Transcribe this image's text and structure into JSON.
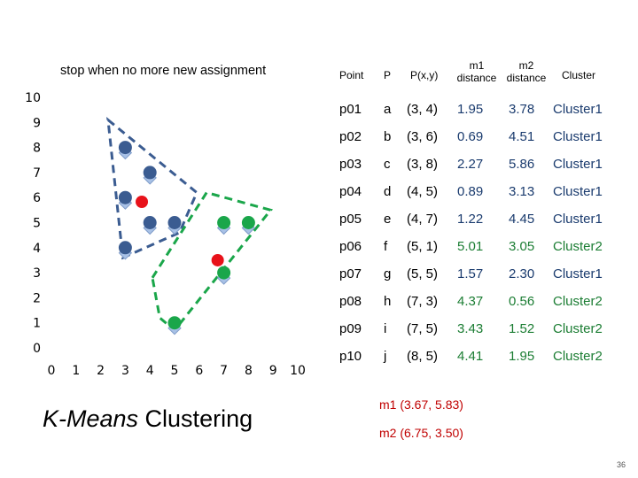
{
  "slide": {
    "headline": "stop when no more new assignment",
    "title_italic": "K-Means",
    "title_rest": " Clustering",
    "page_number": "36"
  },
  "table": {
    "headers": {
      "point": "Point",
      "p": "P",
      "xy": "P(x,y)",
      "m1": "m1\ndistance",
      "m2": "m2\ndistance",
      "cluster": "Cluster"
    },
    "rows": [
      {
        "point": "p01",
        "p": "a",
        "xy": "(3, 4)",
        "d1": "1.95",
        "d2": "3.78",
        "cluster": "Cluster1"
      },
      {
        "point": "p02",
        "p": "b",
        "xy": "(3, 6)",
        "d1": "0.69",
        "d2": "4.51",
        "cluster": "Cluster1"
      },
      {
        "point": "p03",
        "p": "c",
        "xy": "(3, 8)",
        "d1": "2.27",
        "d2": "5.86",
        "cluster": "Cluster1"
      },
      {
        "point": "p04",
        "p": "d",
        "xy": "(4, 5)",
        "d1": "0.89",
        "d2": "3.13",
        "cluster": "Cluster1"
      },
      {
        "point": "p05",
        "p": "e",
        "xy": "(4, 7)",
        "d1": "1.22",
        "d2": "4.45",
        "cluster": "Cluster1"
      },
      {
        "point": "p06",
        "p": "f",
        "xy": "(5, 1)",
        "d1": "5.01",
        "d2": "3.05",
        "cluster": "Cluster2"
      },
      {
        "point": "p07",
        "p": "g",
        "xy": "(5, 5)",
        "d1": "1.57",
        "d2": "2.30",
        "cluster": "Cluster1"
      },
      {
        "point": "p08",
        "p": "h",
        "xy": "(7, 3)",
        "d1": "4.37",
        "d2": "0.56",
        "cluster": "Cluster2"
      },
      {
        "point": "p09",
        "p": "i",
        "xy": "(7, 5)",
        "d1": "3.43",
        "d2": "1.52",
        "cluster": "Cluster2"
      },
      {
        "point": "p10",
        "p": "j",
        "xy": "(8, 5)",
        "d1": "4.41",
        "d2": "1.95",
        "cluster": "Cluster2"
      }
    ],
    "centroids": [
      {
        "label": "m1",
        "value": "(3.67, 5.83)"
      },
      {
        "label": "m2",
        "value": "(6.75, 3.50)"
      }
    ]
  },
  "colors": {
    "cluster1": "#3b5c91",
    "cluster1_text": "#1a3b6e",
    "cluster2": "#1aa64a",
    "cluster2_text": "#1b7d33",
    "centroid": "#e8121a",
    "raw_point": "#a8c1e6"
  },
  "chart_data": {
    "type": "scatter",
    "title": "",
    "xlabel": "",
    "ylabel": "",
    "xlim": [
      0,
      10
    ],
    "ylim": [
      0,
      10
    ],
    "x_ticks": [
      "0",
      "1",
      "2",
      "3",
      "4",
      "5",
      "6",
      "7",
      "8",
      "9",
      "10"
    ],
    "y_ticks": [
      "0",
      "1",
      "2",
      "3",
      "4",
      "5",
      "6",
      "7",
      "8",
      "9",
      "10"
    ],
    "grid": false,
    "series": [
      {
        "name": "Cluster1",
        "color": "#3b5c91",
        "points": [
          [
            3,
            4
          ],
          [
            3,
            6
          ],
          [
            3,
            8
          ],
          [
            4,
            5
          ],
          [
            4,
            7
          ],
          [
            5,
            5
          ]
        ]
      },
      {
        "name": "Cluster2",
        "color": "#1aa64a",
        "points": [
          [
            5,
            1
          ],
          [
            7,
            3
          ],
          [
            7,
            5
          ],
          [
            8,
            5
          ]
        ]
      },
      {
        "name": "Centroids",
        "color": "#e8121a",
        "points": [
          [
            3.67,
            5.83
          ],
          [
            6.75,
            3.5
          ]
        ]
      }
    ]
  }
}
